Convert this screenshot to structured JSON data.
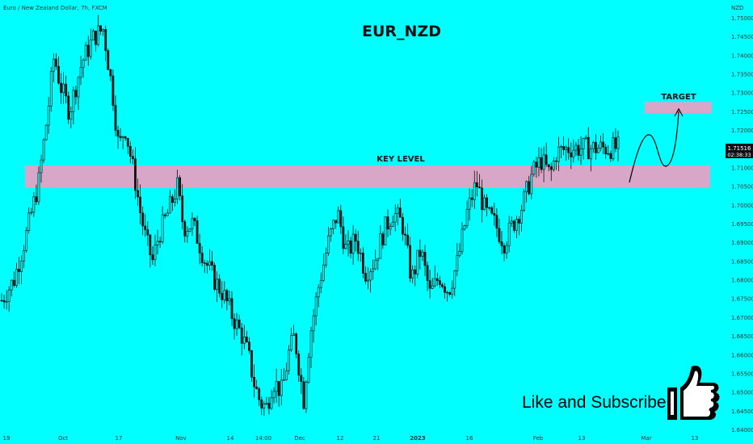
{
  "header": {
    "symbol_line": "Euro / New Zealand Dollar, 7h, FXCM"
  },
  "overlay": {
    "title": "EUR_NZD",
    "key_level_label": "KEY LEVEL",
    "target_label": "TARGET",
    "cta_text": "Like and Subscribe",
    "cta_icon": "thumbs-up-icon"
  },
  "price_badge": {
    "price": "1.71516",
    "countdown": "02:38:33"
  },
  "colors": {
    "background": "#00ffff",
    "zone_fill": "#d8a6c6",
    "candle": "#111111",
    "price_badge": "#0d1117"
  },
  "chart_data": {
    "type": "candlestick",
    "ylabel": "NZD",
    "ylim": [
      1.64,
      1.755
    ],
    "y_ticks": [
      "1.75000",
      "1.74500",
      "1.74000",
      "1.73500",
      "1.73000",
      "1.72500",
      "1.72000",
      "1.71500",
      "1.71000",
      "1.70500",
      "1.70000",
      "1.69500",
      "1.69000",
      "1.68500",
      "1.68000",
      "1.67500",
      "1.67000",
      "1.66500",
      "1.66000",
      "1.65500",
      "1.65000",
      "1.64500",
      "1.64000"
    ],
    "x_ticks": [
      "19",
      "Oct",
      "17",
      "Nov",
      "14",
      "14:00",
      "Dec",
      "12",
      "21",
      "2023",
      "16",
      "Feb",
      "13",
      "Mar",
      "13"
    ],
    "key_level_zone": [
      1.7045,
      1.7105
    ],
    "target_zone": [
      1.7245,
      1.7275
    ],
    "last_price": 1.71516,
    "price_path": [
      [
        0,
        1.6745
      ],
      [
        0.02,
        1.68
      ],
      [
        0.04,
        1.692
      ],
      [
        0.06,
        1.706
      ],
      [
        0.075,
        1.725
      ],
      [
        0.085,
        1.74
      ],
      [
        0.095,
        1.732
      ],
      [
        0.11,
        1.725
      ],
      [
        0.13,
        1.738
      ],
      [
        0.15,
        1.745
      ],
      [
        0.165,
        1.747
      ],
      [
        0.18,
        1.73
      ],
      [
        0.19,
        1.715
      ],
      [
        0.2,
        1.721
      ],
      [
        0.215,
        1.708
      ],
      [
        0.225,
        1.698
      ],
      [
        0.235,
        1.69
      ],
      [
        0.245,
        1.685
      ],
      [
        0.255,
        1.692
      ],
      [
        0.27,
        1.698
      ],
      [
        0.285,
        1.705
      ],
      [
        0.295,
        1.694
      ],
      [
        0.31,
        1.695
      ],
      [
        0.33,
        1.685
      ],
      [
        0.345,
        1.68
      ],
      [
        0.36,
        1.676
      ],
      [
        0.375,
        1.67
      ],
      [
        0.39,
        1.665
      ],
      [
        0.4,
        1.66
      ],
      [
        0.41,
        1.652
      ],
      [
        0.42,
        1.647
      ],
      [
        0.43,
        1.646
      ],
      [
        0.44,
        1.653
      ],
      [
        0.455,
        1.65
      ],
      [
        0.465,
        1.66
      ],
      [
        0.475,
        1.665
      ],
      [
        0.49,
        1.648
      ],
      [
        0.5,
        1.665
      ],
      [
        0.515,
        1.679
      ],
      [
        0.53,
        1.69
      ],
      [
        0.545,
        1.698
      ],
      [
        0.56,
        1.687
      ],
      [
        0.575,
        1.691
      ],
      [
        0.59,
        1.682
      ],
      [
        0.605,
        1.685
      ],
      [
        0.62,
        1.693
      ],
      [
        0.635,
        1.698
      ],
      [
        0.65,
        1.695
      ],
      [
        0.665,
        1.68
      ],
      [
        0.68,
        1.688
      ],
      [
        0.695,
        1.676
      ],
      [
        0.71,
        1.681
      ],
      [
        0.725,
        1.677
      ],
      [
        0.74,
        1.685
      ],
      [
        0.755,
        1.698
      ],
      [
        0.77,
        1.706
      ],
      [
        0.785,
        1.698
      ],
      [
        0.8,
        1.695
      ],
      [
        0.815,
        1.69
      ],
      [
        0.83,
        1.695
      ],
      [
        0.845,
        1.7
      ],
      [
        0.86,
        1.708
      ],
      [
        0.875,
        1.712
      ],
      [
        0.89,
        1.708
      ],
      [
        0.9,
        1.714
      ],
      [
        0.92,
        1.7152
      ]
    ]
  }
}
